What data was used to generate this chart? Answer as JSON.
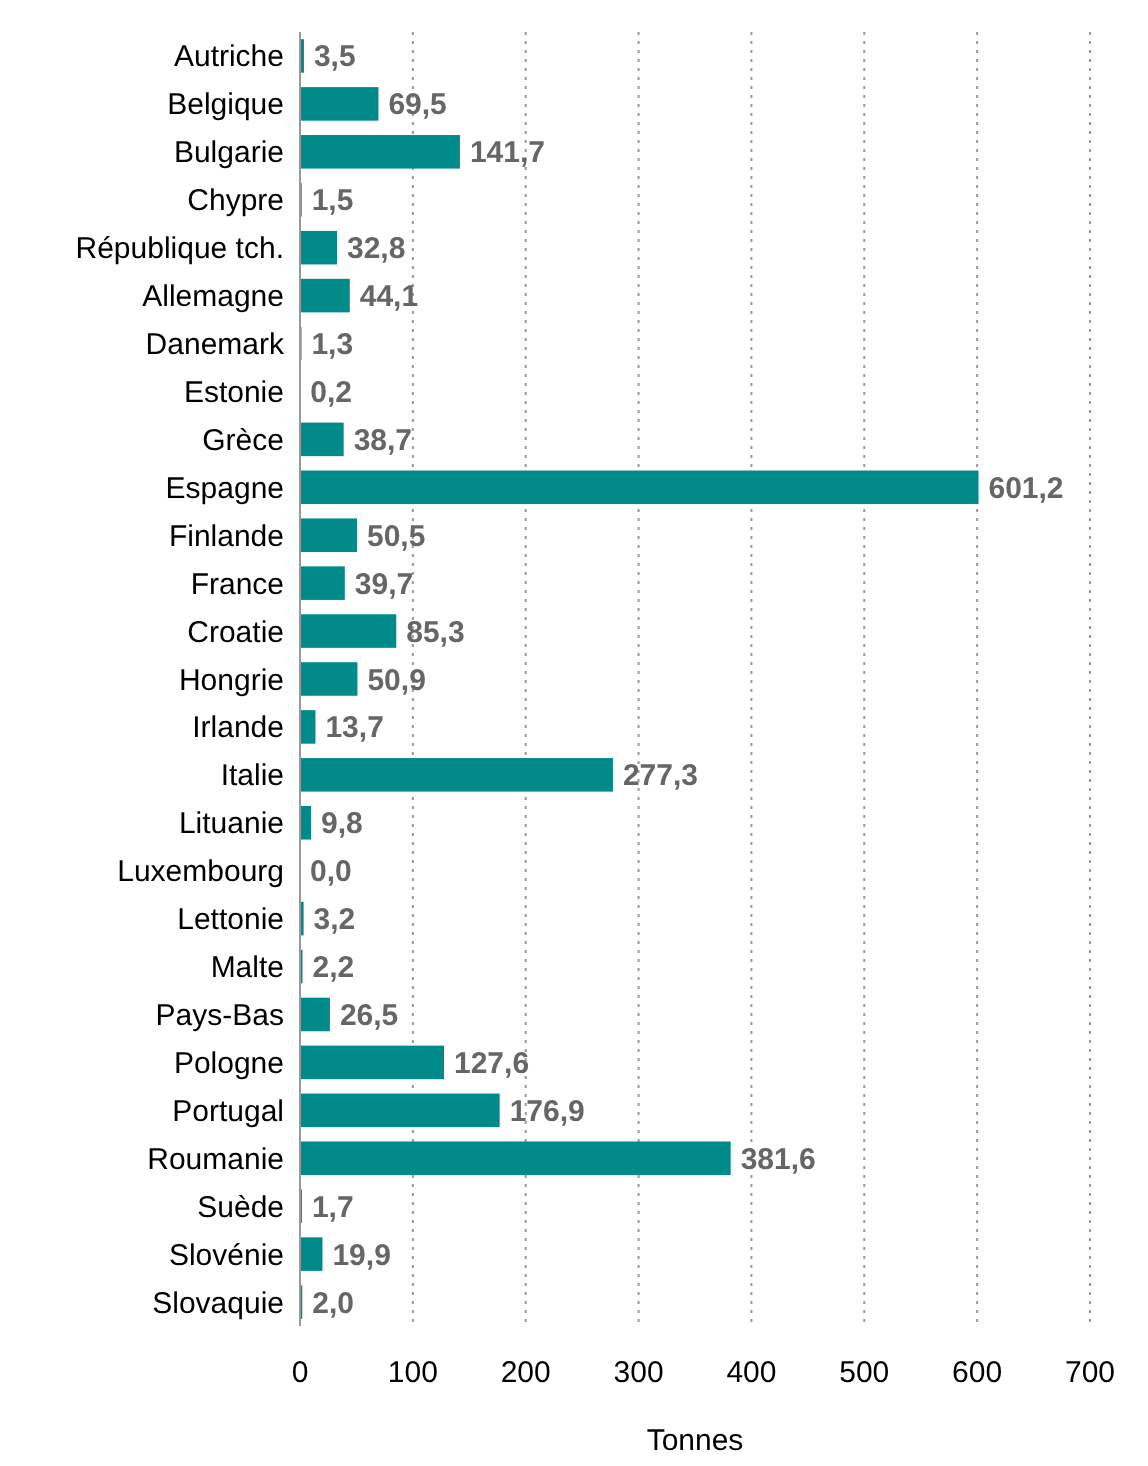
{
  "chart_data": {
    "type": "bar",
    "orientation": "horizontal",
    "xlabel": "Tonnes",
    "categories": [
      "Autriche",
      "Belgique",
      "Bulgarie",
      "Chypre",
      "République tch.",
      "Allemagne",
      "Danemark",
      "Estonie",
      "Grèce",
      "Espagne",
      "Finlande",
      "France",
      "Croatie",
      "Hongrie",
      "Irlande",
      "Italie",
      "Lituanie",
      "Luxembourg",
      "Lettonie",
      "Malte",
      "Pays-Bas",
      "Pologne",
      "Portugal",
      "Roumanie",
      "Suède",
      "Slovénie",
      "Slovaquie"
    ],
    "values": [
      3.5,
      69.5,
      141.7,
      1.5,
      32.8,
      44.1,
      1.3,
      0.2,
      38.7,
      601.2,
      50.5,
      39.7,
      85.3,
      50.9,
      13.7,
      277.3,
      9.8,
      0.0,
      3.2,
      2.2,
      26.5,
      127.6,
      176.9,
      381.6,
      1.7,
      19.9,
      2.0
    ],
    "value_labels": [
      "3,5",
      "69,5",
      "141,7",
      "1,5",
      "32,8",
      "44,1",
      "1,3",
      "0,2",
      "38,7",
      "601,2",
      "50,5",
      "39,7",
      "85,3",
      "50,9",
      "13,7",
      "277,3",
      "9,8",
      "0,0",
      "3,2",
      "2,2",
      "26,5",
      "127,6",
      "176,9",
      "381,6",
      "1,7",
      "19,9",
      "2,0"
    ],
    "color": "#008a8a",
    "xlim": [
      0,
      700
    ],
    "xticks": [
      0,
      100,
      200,
      300,
      400,
      500,
      600,
      700
    ],
    "grid": "x"
  }
}
